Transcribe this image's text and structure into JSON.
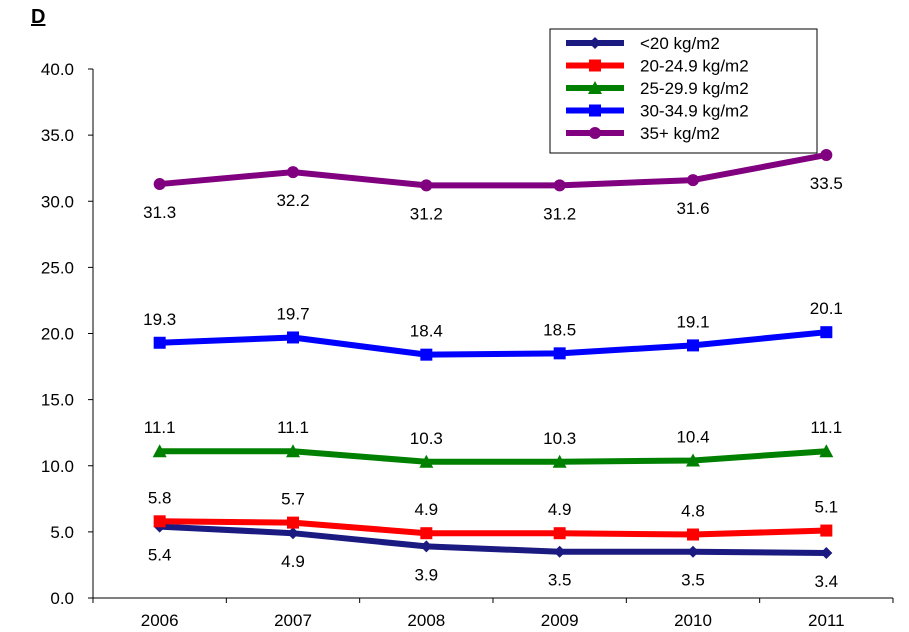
{
  "panel_label": "D",
  "chart_data": {
    "type": "line",
    "title": "",
    "xlabel": "",
    "ylabel": "",
    "categories": [
      "2006",
      "2007",
      "2008",
      "2009",
      "2010",
      "2011"
    ],
    "ylim": [
      0,
      40
    ],
    "yticks": [
      "0.0",
      "5.0",
      "10.0",
      "15.0",
      "20.0",
      "25.0",
      "30.0",
      "35.0",
      "40.0"
    ],
    "grid": false,
    "legend_position": "top-right",
    "series": [
      {
        "name": "<20 kg/m2",
        "color": "#1a1a80",
        "marker": "diamond",
        "values": [
          5.4,
          4.9,
          3.9,
          3.5,
          3.5,
          3.4
        ],
        "labels": [
          "5.4",
          "4.9",
          "3.9",
          "3.5",
          "3.5",
          "3.4"
        ]
      },
      {
        "name": "20-24.9 kg/m2",
        "color": "#ff0000",
        "marker": "square",
        "values": [
          5.8,
          5.7,
          4.9,
          4.9,
          4.8,
          5.1
        ],
        "labels": [
          "5.8",
          "5.7",
          "4.9",
          "4.9",
          "4.8",
          "5.1"
        ]
      },
      {
        "name": "25-29.9 kg/m2",
        "color": "#008000",
        "marker": "triangle",
        "values": [
          11.1,
          11.1,
          10.3,
          10.3,
          10.4,
          11.1
        ],
        "labels": [
          "11.1",
          "11.1",
          "10.3",
          "10.3",
          "10.4",
          "11.1"
        ]
      },
      {
        "name": "30-34.9 kg/m2",
        "color": "#0000ff",
        "marker": "square",
        "values": [
          19.3,
          19.7,
          18.4,
          18.5,
          19.1,
          20.1
        ],
        "labels": [
          "19.3",
          "19.7",
          "18.4",
          "18.5",
          "19.1",
          "20.1"
        ]
      },
      {
        "name": "35+ kg/m2",
        "color": "#800080",
        "marker": "circle",
        "values": [
          31.3,
          32.2,
          31.2,
          31.2,
          31.6,
          33.5
        ],
        "labels": [
          "31.3",
          "32.2",
          "31.2",
          "31.2",
          "31.6",
          "33.5"
        ]
      }
    ]
  }
}
